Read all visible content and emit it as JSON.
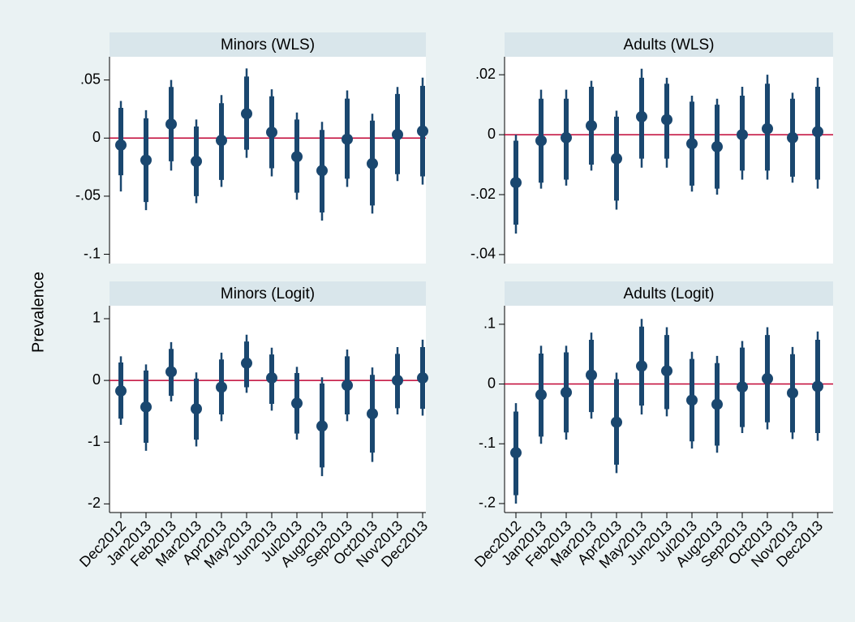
{
  "y_label": "Prevalence",
  "categories": [
    "Dec2012",
    "Jan2013",
    "Feb2013",
    "Mar2013",
    "Apr2013",
    "May2013",
    "Jun2013",
    "Jul2013",
    "Aug2013",
    "Sep2013",
    "Oct2013",
    "Nov2013",
    "Dec2013"
  ],
  "color": "#1a476f",
  "reference_color": "#c10534",
  "chart_data": [
    {
      "type": "dot-ci",
      "title": "Minors (WLS)",
      "reference_line": 0,
      "ylim": [
        -0.108,
        0.07
      ],
      "yticks": [
        {
          "value": -0.1,
          "label": "-.1"
        },
        {
          "value": -0.05,
          "label": "-.05"
        },
        0,
        {
          "value": 0.05,
          "label": ".05"
        }
      ],
      "values": [
        -0.006,
        -0.019,
        0.012,
        -0.02,
        -0.002,
        0.021,
        0.005,
        -0.016,
        -0.028,
        -0.001,
        -0.022,
        0.003,
        0.006
      ],
      "inner_low": [
        -0.032,
        -0.055,
        -0.02,
        -0.05,
        -0.036,
        -0.01,
        -0.026,
        -0.047,
        -0.064,
        -0.035,
        -0.058,
        -0.031,
        -0.033
      ],
      "inner_high": [
        0.026,
        0.017,
        0.044,
        0.01,
        0.03,
        0.053,
        0.036,
        0.016,
        0.007,
        0.034,
        0.015,
        0.038,
        0.045
      ],
      "outer_low": [
        -0.046,
        -0.062,
        -0.028,
        -0.056,
        -0.042,
        -0.017,
        -0.033,
        -0.053,
        -0.071,
        -0.042,
        -0.065,
        -0.037,
        -0.04
      ],
      "outer_high": [
        0.032,
        0.024,
        0.05,
        0.016,
        0.037,
        0.06,
        0.042,
        0.022,
        0.014,
        0.041,
        0.021,
        0.044,
        0.052
      ]
    },
    {
      "type": "dot-ci",
      "title": "Adults (WLS)",
      "reference_line": 0,
      "ylim": [
        -0.043,
        0.026
      ],
      "yticks": [
        {
          "value": -0.04,
          "label": "-.04"
        },
        {
          "value": -0.02,
          "label": "-.02"
        },
        0,
        {
          "value": 0.02,
          "label": ".02"
        }
      ],
      "values": [
        -0.016,
        -0.002,
        -0.001,
        0.003,
        -0.008,
        0.006,
        0.005,
        -0.003,
        -0.004,
        0.0,
        0.002,
        -0.001,
        0.001
      ],
      "inner_low": [
        -0.03,
        -0.016,
        -0.015,
        -0.01,
        -0.022,
        -0.008,
        -0.008,
        -0.017,
        -0.018,
        -0.012,
        -0.012,
        -0.014,
        -0.015
      ],
      "inner_high": [
        -0.002,
        0.012,
        0.012,
        0.016,
        0.006,
        0.019,
        0.017,
        0.011,
        0.01,
        0.013,
        0.017,
        0.012,
        0.016
      ],
      "outer_low": [
        -0.033,
        -0.018,
        -0.017,
        -0.012,
        -0.025,
        -0.011,
        -0.011,
        -0.019,
        -0.02,
        -0.015,
        -0.015,
        -0.016,
        -0.018
      ],
      "outer_high": [
        0.0,
        0.015,
        0.015,
        0.018,
        0.008,
        0.022,
        0.019,
        0.013,
        0.012,
        0.016,
        0.02,
        0.014,
        0.019
      ]
    },
    {
      "type": "dot-ci",
      "title": "Minors (Logit)",
      "reference_line": 0,
      "ylim": [
        -2.14,
        1.21
      ],
      "yticks": [
        -2,
        -1,
        0,
        1
      ],
      "values": [
        -0.17,
        -0.43,
        0.14,
        -0.46,
        -0.11,
        0.28,
        0.04,
        -0.37,
        -0.74,
        -0.08,
        -0.54,
        0.0,
        0.04
      ],
      "inner_low": [
        -0.62,
        -1.01,
        -0.25,
        -0.96,
        -0.55,
        -0.11,
        -0.38,
        -0.86,
        -1.41,
        -0.55,
        -1.17,
        -0.45,
        -0.46
      ],
      "inner_high": [
        0.29,
        0.16,
        0.51,
        0.03,
        0.34,
        0.63,
        0.42,
        0.12,
        -0.05,
        0.39,
        0.09,
        0.43,
        0.54
      ],
      "outer_low": [
        -0.72,
        -1.14,
        -0.34,
        -1.07,
        -0.66,
        -0.2,
        -0.49,
        -0.96,
        -1.55,
        -0.66,
        -1.32,
        -0.55,
        -0.57
      ],
      "outer_high": [
        0.39,
        0.26,
        0.62,
        0.13,
        0.45,
        0.74,
        0.53,
        0.22,
        0.05,
        0.5,
        0.21,
        0.54,
        0.66
      ]
    },
    {
      "type": "dot-ci",
      "title": "Adults (Logit)",
      "reference_line": 0,
      "ylim": [
        -0.215,
        0.131
      ],
      "yticks": [
        {
          "value": -0.2,
          "label": "-.2"
        },
        {
          "value": -0.1,
          "label": "-.1"
        },
        0,
        {
          "value": 0.1,
          "label": ".1"
        }
      ],
      "values": [
        -0.115,
        -0.018,
        -0.014,
        0.015,
        -0.064,
        0.03,
        0.022,
        -0.027,
        -0.034,
        -0.005,
        0.009,
        -0.015,
        -0.004
      ],
      "inner_low": [
        -0.186,
        -0.088,
        -0.081,
        -0.047,
        -0.135,
        -0.036,
        -0.042,
        -0.096,
        -0.103,
        -0.072,
        -0.064,
        -0.081,
        -0.082
      ],
      "inner_high": [
        -0.046,
        0.051,
        0.053,
        0.074,
        0.008,
        0.096,
        0.082,
        0.042,
        0.035,
        0.061,
        0.082,
        0.05,
        0.074
      ],
      "outer_low": [
        -0.2,
        -0.1,
        -0.093,
        -0.058,
        -0.149,
        -0.051,
        -0.054,
        -0.108,
        -0.115,
        -0.082,
        -0.076,
        -0.092,
        -0.095
      ],
      "outer_high": [
        -0.032,
        0.064,
        0.064,
        0.086,
        0.019,
        0.109,
        0.095,
        0.054,
        0.047,
        0.072,
        0.095,
        0.062,
        0.088
      ]
    }
  ]
}
